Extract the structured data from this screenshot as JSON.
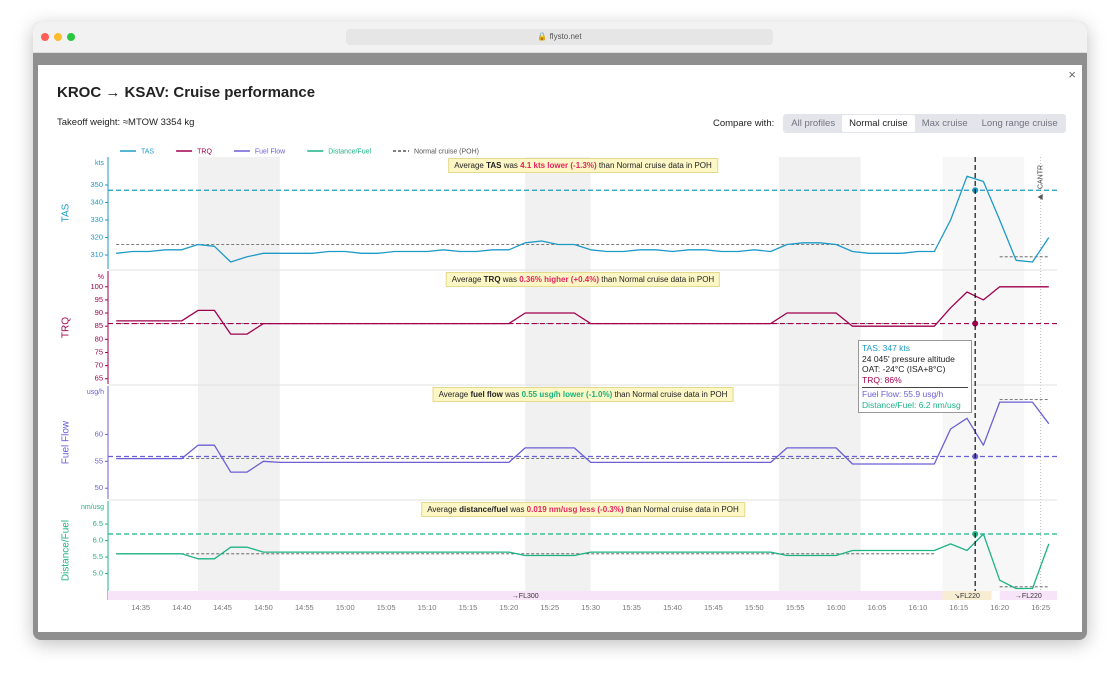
{
  "browser": {
    "url": "flysto.net"
  },
  "modal": {
    "close": "×",
    "title": "KROC → KSAV: Cruise performance",
    "takeoff_weight": "Takeoff weight: ≈MTOW 3354 kg",
    "compare_label": "Compare with:",
    "compare_options": [
      "All profiles",
      "Normal cruise",
      "Max cruise",
      "Long range cruise"
    ],
    "selected": "Normal cruise"
  },
  "chart_data": {
    "type": "line",
    "xlim": [
      "14:31",
      "16:27"
    ],
    "xticks": [
      "14:35",
      "14:40",
      "14:45",
      "14:50",
      "14:55",
      "15:00",
      "15:05",
      "15:10",
      "15:15",
      "15:20",
      "15:25",
      "15:30",
      "15:35",
      "15:40",
      "15:45",
      "15:50",
      "15:55",
      "16:00",
      "16:05",
      "16:10",
      "16:15",
      "16:20",
      "16:25"
    ],
    "x": [
      "14:32",
      "14:34",
      "14:36",
      "14:38",
      "14:40",
      "14:42",
      "14:44",
      "14:46",
      "14:48",
      "14:50",
      "14:52",
      "14:54",
      "14:56",
      "14:58",
      "15:00",
      "15:02",
      "15:04",
      "15:06",
      "15:08",
      "15:10",
      "15:12",
      "15:14",
      "15:16",
      "15:18",
      "15:20",
      "15:22",
      "15:24",
      "15:26",
      "15:28",
      "15:30",
      "15:32",
      "15:34",
      "15:36",
      "15:38",
      "15:40",
      "15:42",
      "15:44",
      "15:46",
      "15:48",
      "15:50",
      "15:52",
      "15:54",
      "15:56",
      "15:58",
      "16:00",
      "16:02",
      "16:04",
      "16:06",
      "16:08",
      "16:10",
      "16:12",
      "16:14",
      "16:16",
      "16:18",
      "16:20",
      "16:22",
      "16:24",
      "16:26"
    ],
    "reference": {
      "name": "Normal cruise (POH)",
      "color": "#555555"
    },
    "shaded_ranges": [
      [
        "14:42",
        "14:52"
      ],
      [
        "15:22",
        "15:30"
      ],
      [
        "15:53",
        "16:03"
      ],
      [
        "16:13",
        "16:23"
      ]
    ],
    "events": [
      {
        "x": "16:25",
        "label": "CANTR"
      }
    ],
    "phases": [
      {
        "label": "→FL300",
        "start": "14:31",
        "end": "16:13",
        "color": "#f8e4f8"
      },
      {
        "label": "↘FL220",
        "start": "16:13",
        "end": "16:19",
        "color": "#f6edd2"
      },
      {
        "label": "→FL220",
        "start": "16:20",
        "end": "16:27",
        "color": "#f8e4f8"
      }
    ],
    "cursor": {
      "x": "16:17"
    },
    "panels": [
      {
        "name": "TAS",
        "label": "TAS",
        "unit": "kts",
        "color": "#1e9ac7",
        "ylim": [
          302,
          366
        ],
        "yticks": [
          310,
          320,
          330,
          340,
          350
        ],
        "values": [
          311,
          312,
          312,
          313,
          313,
          316,
          315,
          306,
          309,
          311,
          311,
          311,
          311,
          312,
          312,
          311,
          311,
          312,
          312,
          312,
          313,
          312,
          312,
          313,
          313,
          317,
          318,
          316,
          316,
          313,
          312,
          312,
          313,
          313,
          312,
          313,
          313,
          312,
          312,
          313,
          312,
          316,
          317,
          317,
          316,
          312,
          311,
          311,
          311,
          312,
          312,
          330,
          355,
          352,
          330,
          307,
          306,
          320
        ],
        "poh_values": [
          316,
          316,
          316,
          316,
          316,
          316,
          316,
          316,
          316,
          316,
          316,
          316,
          316,
          316,
          316,
          316,
          316,
          316,
          316,
          316,
          316,
          316,
          316,
          316,
          316,
          316,
          316,
          316,
          316,
          316,
          316,
          316,
          316,
          316,
          316,
          316,
          316,
          316,
          316,
          316,
          316,
          316,
          316,
          316,
          316,
          316,
          316,
          316,
          316,
          316,
          316,
          null,
          null,
          null,
          309,
          309,
          309,
          309
        ],
        "cursor_value": 347,
        "annotation": {
          "prefix": "Average ",
          "metric": "TAS",
          "mid": " was ",
          "delta": "4.1 kts lower (-1.3%)",
          "delta_color": "#e0245e",
          "suffix": " than Normal cruise data in POH"
        }
      },
      {
        "name": "TRQ",
        "label": "TRQ",
        "unit": "%",
        "color": "#a0004e",
        "ylim": [
          63,
          106
        ],
        "yticks": [
          65,
          70,
          75,
          80,
          85,
          90,
          95,
          100
        ],
        "values": [
          87,
          87,
          87,
          87,
          87,
          91,
          91,
          82,
          82,
          86,
          86,
          86,
          86,
          86,
          86,
          86,
          86,
          86,
          86,
          86,
          86,
          86,
          86,
          86,
          86,
          90,
          90,
          90,
          90,
          86,
          86,
          86,
          86,
          86,
          86,
          86,
          86,
          86,
          86,
          86,
          86,
          90,
          90,
          90,
          90,
          85,
          85,
          85,
          85,
          85,
          85,
          92,
          98,
          95,
          100,
          100,
          100,
          100
        ],
        "poh_values": [
          86,
          86,
          86,
          86,
          86,
          86,
          86,
          86,
          86,
          86,
          86,
          86,
          86,
          86,
          86,
          86,
          86,
          86,
          86,
          86,
          86,
          86,
          86,
          86,
          86,
          86,
          86,
          86,
          86,
          86,
          86,
          86,
          86,
          86,
          86,
          86,
          86,
          86,
          86,
          86,
          86,
          86,
          86,
          86,
          86,
          86,
          86,
          86,
          86,
          86,
          86,
          null,
          null,
          null,
          100,
          100,
          100,
          100
        ],
        "cursor_value": 86,
        "annotation": {
          "prefix": "Average ",
          "metric": "TRQ",
          "mid": " was ",
          "delta": "0.36% higher (+0.4%)",
          "delta_color": "#e0245e",
          "suffix": " than Normal cruise data in POH"
        }
      },
      {
        "name": "Fuel Flow",
        "label": "Fuel Flow",
        "unit": "usg/h",
        "color": "#6b5fd6",
        "ylim": [
          48,
          69
        ],
        "yticks": [
          50,
          55,
          60
        ],
        "values": [
          55.5,
          55.5,
          55.5,
          55.5,
          55.5,
          58,
          58,
          53,
          53,
          55,
          54.8,
          54.8,
          54.8,
          54.8,
          54.8,
          54.8,
          54.8,
          54.8,
          54.8,
          54.8,
          54.8,
          54.8,
          54.8,
          54.8,
          54.8,
          57.5,
          57.5,
          57.5,
          57.5,
          54.8,
          54.8,
          54.8,
          54.8,
          54.8,
          54.8,
          54.8,
          54.8,
          54.8,
          54.8,
          54.8,
          54.8,
          57.5,
          57.5,
          57.5,
          57.5,
          54.5,
          54.5,
          54.5,
          54.5,
          54.5,
          54.5,
          61,
          63,
          58,
          66,
          66,
          66,
          62
        ],
        "poh_values": [
          55.5,
          55.5,
          55.5,
          55.5,
          55.5,
          55.5,
          55.5,
          55.5,
          55.5,
          55.5,
          55.5,
          55.5,
          55.5,
          55.5,
          55.5,
          55.5,
          55.5,
          55.5,
          55.5,
          55.5,
          55.5,
          55.5,
          55.5,
          55.5,
          55.5,
          55.5,
          55.5,
          55.5,
          55.5,
          55.5,
          55.5,
          55.5,
          55.5,
          55.5,
          55.5,
          55.5,
          55.5,
          55.5,
          55.5,
          55.5,
          55.5,
          55.5,
          55.5,
          55.5,
          55.5,
          55.5,
          55.5,
          55.5,
          55.5,
          55.5,
          55.5,
          null,
          null,
          null,
          66.5,
          66.5,
          66.5,
          66.5
        ],
        "cursor_value": 55.9,
        "annotation": {
          "prefix": "Average ",
          "metric": "fuel flow",
          "mid": " was ",
          "delta": "0.55 usg/h lower (-1.0%)",
          "delta_color": "#17b37b",
          "suffix": " than Normal cruise data in POH"
        }
      },
      {
        "name": "Distance/Fuel",
        "label": "Distance/Fuel",
        "unit": "nm/usg",
        "color": "#1db385",
        "ylim": [
          4.2,
          7.2
        ],
        "yticks": [
          {
            "value": 5,
            "label": "5.0"
          },
          5.5,
          {
            "value": 6,
            "label": "6.0"
          },
          6.5
        ],
        "values": [
          5.6,
          5.6,
          5.6,
          5.6,
          5.6,
          5.45,
          5.45,
          5.8,
          5.8,
          5.65,
          5.65,
          5.65,
          5.65,
          5.65,
          5.65,
          5.65,
          5.65,
          5.65,
          5.65,
          5.65,
          5.65,
          5.65,
          5.65,
          5.65,
          5.65,
          5.55,
          5.55,
          5.55,
          5.55,
          5.65,
          5.65,
          5.65,
          5.65,
          5.65,
          5.65,
          5.65,
          5.65,
          5.65,
          5.65,
          5.65,
          5.65,
          5.55,
          5.55,
          5.55,
          5.55,
          5.7,
          5.7,
          5.7,
          5.7,
          5.7,
          5.7,
          5.9,
          5.7,
          6.2,
          4.8,
          4.55,
          4.55,
          5.9
        ],
        "poh_values": [
          5.6,
          5.6,
          5.6,
          5.6,
          5.6,
          5.6,
          5.6,
          5.6,
          5.6,
          5.6,
          5.6,
          5.6,
          5.6,
          5.6,
          5.6,
          5.6,
          5.6,
          5.6,
          5.6,
          5.6,
          5.6,
          5.6,
          5.6,
          5.6,
          5.6,
          5.6,
          5.6,
          5.6,
          5.6,
          5.6,
          5.6,
          5.6,
          5.6,
          5.6,
          5.6,
          5.6,
          5.6,
          5.6,
          5.6,
          5.6,
          5.6,
          5.6,
          5.6,
          5.6,
          5.6,
          5.6,
          5.6,
          5.6,
          5.6,
          5.6,
          5.6,
          null,
          null,
          null,
          4.6,
          4.6,
          4.6,
          4.6
        ],
        "cursor_value": 6.2,
        "annotation": {
          "prefix": "Average ",
          "metric": "distance/fuel",
          "mid": " was ",
          "delta": "0.019 nm/usg less (-0.3%)",
          "delta_color": "#e0245e",
          "suffix": " than Normal cruise data in POH"
        }
      }
    ],
    "tooltip": [
      [
        {
          "text": "TAS: 347 kts",
          "color": "#1e9ac7"
        },
        {
          "text": "24 045' pressure altitude",
          "color": "#222222"
        },
        {
          "text": "OAT: -24°C (ISA+8°C)",
          "color": "#222222"
        },
        {
          "text": "TRQ: 86%",
          "color": "#a0004e"
        }
      ],
      [
        {
          "text": "Fuel Flow: 55.9 usg/h",
          "color": "#6b5fd6"
        },
        {
          "text": "Distance/Fuel: 6.2 nm/usg",
          "color": "#1db385"
        }
      ]
    ]
  }
}
